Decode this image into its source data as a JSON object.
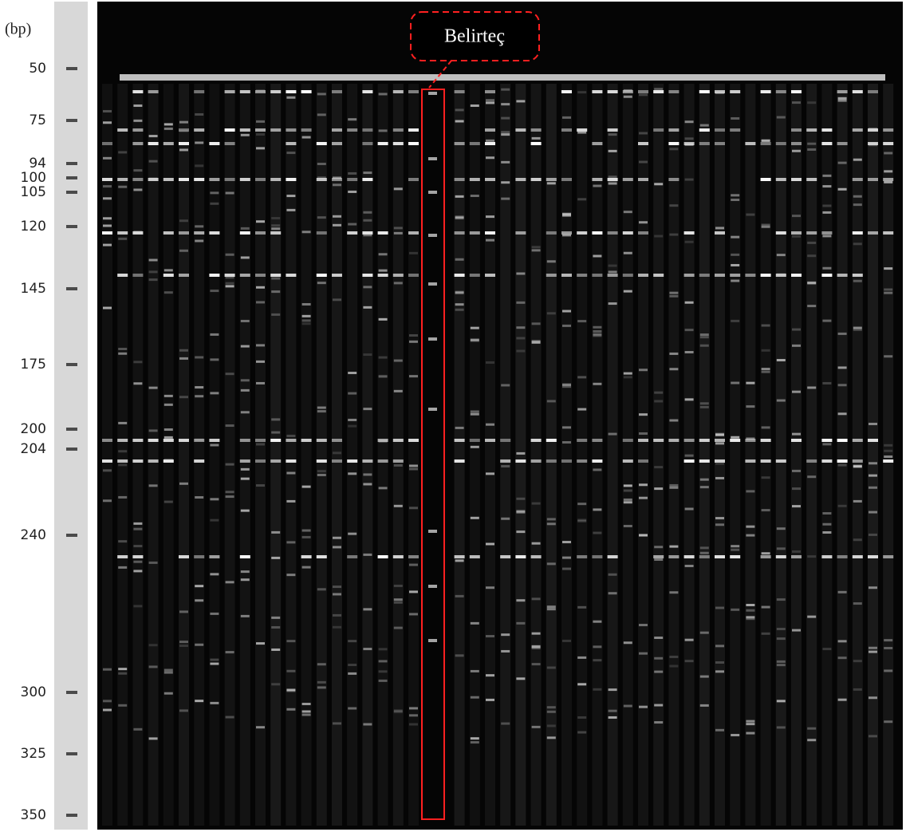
{
  "unit_label": "(bp)",
  "ladder": [
    50,
    75,
    94,
    100,
    105,
    120,
    145,
    175,
    200,
    204,
    240,
    300,
    325,
    350
  ],
  "callout": "Belirteç"
}
